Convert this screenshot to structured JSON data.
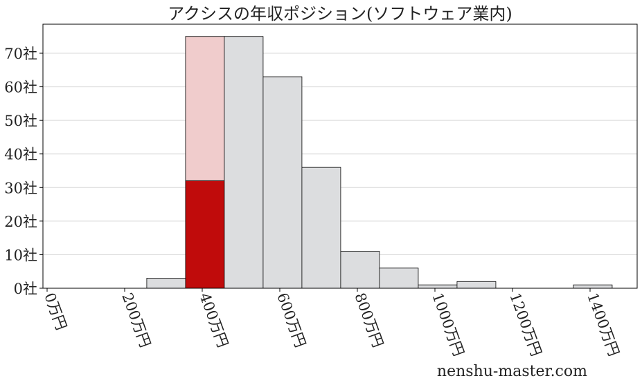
{
  "chart_data": {
    "type": "histogram",
    "title": "アクシスの年収ポジション(ソフトウェア業内)",
    "bins": [
      257,
      357,
      457,
      557,
      657,
      757,
      857,
      957,
      1057,
      1157,
      1257,
      1357,
      1457
    ],
    "values": [
      3,
      75,
      75,
      63,
      36,
      11,
      6,
      1,
      2,
      0,
      0,
      1
    ],
    "bar_colors": [
      "#dcdddf",
      "#f0cccc",
      "#dcdddf",
      "#dcdddf",
      "#dcdddf",
      "#dcdddf",
      "#dcdddf",
      "#dcdddf",
      "#dcdddf",
      "#dcdddf",
      "#dcdddf",
      "#dcdddf"
    ],
    "overlay_values": [
      null,
      32,
      null,
      null,
      null,
      null,
      null,
      null,
      null,
      null,
      null,
      null
    ],
    "overlay_color": "#c00b0b",
    "xlim": [
      -10.7,
      1521.4
    ],
    "xticks": [
      {
        "value": 0,
        "label": "0万円"
      },
      {
        "value": 200,
        "label": "200万円"
      },
      {
        "value": 400,
        "label": "400万円"
      },
      {
        "value": 600,
        "label": "600万円"
      },
      {
        "value": 800,
        "label": "800万円"
      },
      {
        "value": 1000,
        "label": "1000万円"
      },
      {
        "value": 1200,
        "label": "1200万円"
      },
      {
        "value": 1400,
        "label": "1400万円"
      }
    ],
    "ylim": [
      0,
      78.65
    ],
    "yticks": [
      {
        "value": 0,
        "label": "0社"
      },
      {
        "value": 10,
        "label": "10社"
      },
      {
        "value": 20,
        "label": "20社"
      },
      {
        "value": 30,
        "label": "30社"
      },
      {
        "value": 40,
        "label": "40社"
      },
      {
        "value": 50,
        "label": "50社"
      },
      {
        "value": 60,
        "label": "60社"
      },
      {
        "value": 70,
        "label": "70社"
      }
    ],
    "grid": true,
    "watermark": "nenshu-master.com"
  }
}
